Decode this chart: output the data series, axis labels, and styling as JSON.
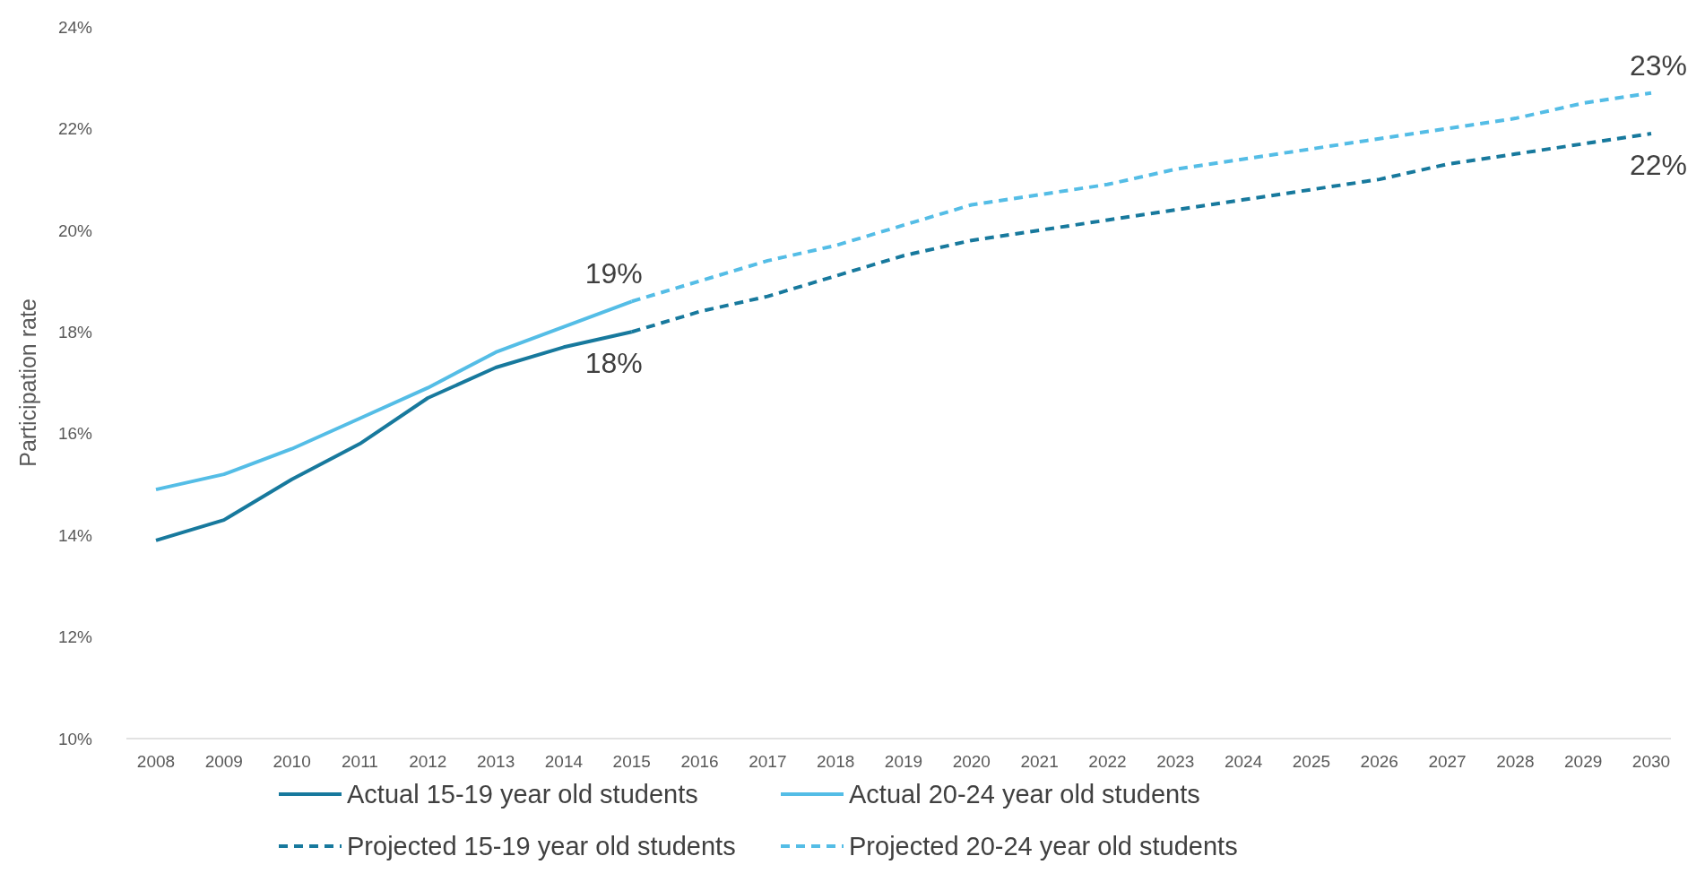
{
  "chart_data": {
    "type": "line",
    "ylabel": "Participation rate",
    "categories": [
      "2008",
      "2009",
      "2010",
      "2011",
      "2012",
      "2013",
      "2014",
      "2015",
      "2016",
      "2017",
      "2018",
      "2019",
      "2020",
      "2021",
      "2022",
      "2023",
      "2024",
      "2025",
      "2026",
      "2027",
      "2028",
      "2029",
      "2030"
    ],
    "series": [
      {
        "name": "Actual 15-19 year old students",
        "color": "#17799d",
        "line_style": "solid",
        "values": [
          13.9,
          14.3,
          15.1,
          15.8,
          16.7,
          17.3,
          17.7,
          18.0,
          null,
          null,
          null,
          null,
          null,
          null,
          null,
          null,
          null,
          null,
          null,
          null,
          null,
          null,
          null
        ]
      },
      {
        "name": "Actual 20-24 year old students",
        "color": "#54bde6",
        "line_style": "solid",
        "values": [
          14.9,
          15.2,
          15.7,
          16.3,
          16.9,
          17.6,
          18.1,
          18.6,
          null,
          null,
          null,
          null,
          null,
          null,
          null,
          null,
          null,
          null,
          null,
          null,
          null,
          null,
          null
        ]
      },
      {
        "name": "Projected 15-19 year old students",
        "color": "#17799d",
        "line_style": "dashed",
        "values": [
          null,
          null,
          null,
          null,
          null,
          null,
          null,
          18.0,
          18.4,
          18.7,
          19.1,
          19.5,
          19.8,
          20.0,
          20.2,
          20.4,
          20.6,
          20.8,
          21.0,
          21.3,
          21.5,
          21.7,
          21.9
        ]
      },
      {
        "name": "Projected 20-24 year old students",
        "color": "#54bde6",
        "line_style": "dashed",
        "values": [
          null,
          null,
          null,
          null,
          null,
          null,
          null,
          18.6,
          19.0,
          19.4,
          19.7,
          20.1,
          20.5,
          20.7,
          20.9,
          21.2,
          21.4,
          21.6,
          21.8,
          22.0,
          22.2,
          22.5,
          22.7
        ]
      }
    ],
    "ylim": [
      10,
      24
    ],
    "yticks": [
      {
        "value": 10,
        "label": "10%"
      },
      {
        "value": 12,
        "label": "12%"
      },
      {
        "value": 14,
        "label": "14%"
      },
      {
        "value": 16,
        "label": "16%"
      },
      {
        "value": 18,
        "label": "18%"
      },
      {
        "value": 20,
        "label": "20%"
      },
      {
        "value": 22,
        "label": "22%"
      },
      {
        "value": 24,
        "label": "24%"
      }
    ],
    "annotations": [
      {
        "text": "19%",
        "x": "2015",
        "y": 18.6
      },
      {
        "text": "18%",
        "x": "2015",
        "y": 18.0
      },
      {
        "text": "23%",
        "x": "2030",
        "y": 22.7
      },
      {
        "text": "22%",
        "x": "2030",
        "y": 21.9
      }
    ],
    "grid": false,
    "legend": "bottom",
    "marker": "none"
  }
}
